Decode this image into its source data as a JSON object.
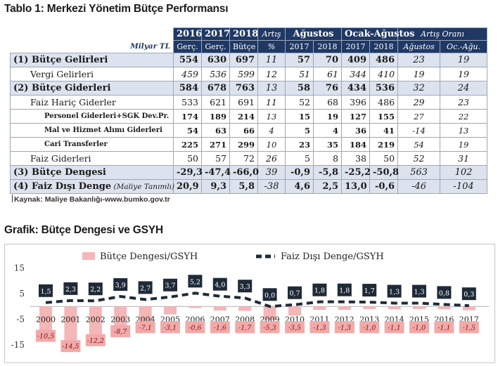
{
  "title": "Tablo 1: Merkezi Yönetim Bütçe Performansı",
  "source": "Kaynak: Maliye Bakanlığı-www.bumko.gov.tr",
  "chart_title": "Grafik: Bütçe Dengesi ve GSYH",
  "table": {
    "unit": "Milyar TL",
    "h1": [
      "2016",
      "2017",
      "2018",
      "Artış",
      "Ağustos",
      "Ocak-Ağustos",
      "Artış Oranı"
    ],
    "h2": [
      "Gerç.",
      "Gerç.",
      "Bütçe",
      "%",
      "2017",
      "2018",
      "2017",
      "2018",
      "Ağustos",
      "Oc.-Ağu."
    ],
    "rows": [
      {
        "n": "(1)",
        "label": "Bütçe Gelirleri",
        "v": [
          "554",
          "630",
          "697",
          "11",
          "57",
          "70",
          "409",
          "486",
          "23",
          "19"
        ]
      },
      {
        "n": "",
        "label": "Vergi Gelirleri",
        "v": [
          "459",
          "536",
          "599",
          "12",
          "51",
          "61",
          "344",
          "410",
          "19",
          "19"
        ]
      },
      {
        "n": "(2)",
        "label": "Bütçe Giderleri",
        "v": [
          "584",
          "678",
          "763",
          "13",
          "58",
          "76",
          "434",
          "536",
          "32",
          "24"
        ]
      },
      {
        "n": "",
        "label": "Faiz Hariç Giderler",
        "v": [
          "533",
          "621",
          "691",
          "11",
          "52",
          "68",
          "396",
          "486",
          "29",
          "23"
        ]
      },
      {
        "n": "",
        "label": "Personel Giderleri+SGK Dev.Pr.",
        "v": [
          "174",
          "189",
          "214",
          "13",
          "15",
          "19",
          "127",
          "155",
          "27",
          "22"
        ]
      },
      {
        "n": "",
        "label": "Mal ve Hizmet Alımı Giderleri",
        "v": [
          "54",
          "63",
          "66",
          "4",
          "5",
          "4",
          "36",
          "41",
          "-14",
          "13"
        ]
      },
      {
        "n": "",
        "label": "Cari Transferler",
        "v": [
          "225",
          "271",
          "299",
          "10",
          "23",
          "35",
          "184",
          "219",
          "54",
          "19"
        ]
      },
      {
        "n": "",
        "label": "Faiz Giderleri",
        "v": [
          "50",
          "57",
          "72",
          "26",
          "5",
          "8",
          "38",
          "50",
          "52",
          "31"
        ]
      },
      {
        "n": "(3)",
        "label": "Bütçe Dengesi",
        "v": [
          "-29,3",
          "-47,4",
          "-66,0",
          "39",
          "-0,9",
          "-5,8",
          "-25,2",
          "-50,8",
          "563",
          "102"
        ]
      },
      {
        "n": "(4)",
        "label": "Faiz Dışı Denge",
        "note": "(Maliye Tanımlı)",
        "v": [
          "20,9",
          "9,3",
          "5,8",
          "-38",
          "4,6",
          "2,5",
          "13,0",
          "-0,6",
          "-46",
          "-104"
        ]
      }
    ]
  },
  "chart_data": {
    "type": "bar",
    "title": "Grafik: Bütçe Dengesi ve GSYH",
    "categories": [
      "2000",
      "2001",
      "2002",
      "2003",
      "2004",
      "2005",
      "2006",
      "2007",
      "2008",
      "2009",
      "2010",
      "2011",
      "2012",
      "2013",
      "2014",
      "2015",
      "2016",
      "2017"
    ],
    "series": [
      {
        "name": "Bütçe Dengesi/GSYH",
        "kind": "bar",
        "color": "#f4b6b6",
        "values": [
          -10.5,
          -14.5,
          -12.2,
          -8.7,
          -7.1,
          -3.1,
          -0.6,
          -1.6,
          -1.7,
          -5.3,
          -3.5,
          -1.3,
          -1.3,
          -1.0,
          -1.1,
          -1.0,
          -1.1,
          -1.5
        ],
        "labels": [
          "-10,5",
          "-14,5",
          "-12,2",
          "-8,7",
          "-7,1",
          "-3,1",
          "-0,6",
          "-1,6",
          "-1,7",
          "-5,3",
          "-3,5",
          "-1,3",
          "-1,3",
          "-1,0",
          "-1,1",
          "-1,0",
          "-1,1",
          "-1,5"
        ]
      },
      {
        "name": "Faiz Dışı Denge/GSYH",
        "kind": "line",
        "color": "#1f2a38",
        "values": [
          1.5,
          2.3,
          2.2,
          3.9,
          2.7,
          3.7,
          5.2,
          4.0,
          3.3,
          0.0,
          0.7,
          1.8,
          1.8,
          1.7,
          1.3,
          1.3,
          0.8,
          0.3
        ],
        "labels": [
          "1,5",
          "2,3",
          "2,2",
          "3,9",
          "2,7",
          "3,7",
          "5,2",
          "4,0",
          "3,3",
          "0,0",
          "0,7",
          "1,8",
          "1,8",
          "1,7",
          "1,3",
          "1,3",
          "0,8",
          "0,3"
        ]
      }
    ],
    "yticks": [
      "15",
      "5",
      "-5",
      "-15"
    ],
    "ytick_values": [
      15,
      5,
      -5,
      -15
    ],
    "ylim": [
      -16,
      17
    ]
  }
}
